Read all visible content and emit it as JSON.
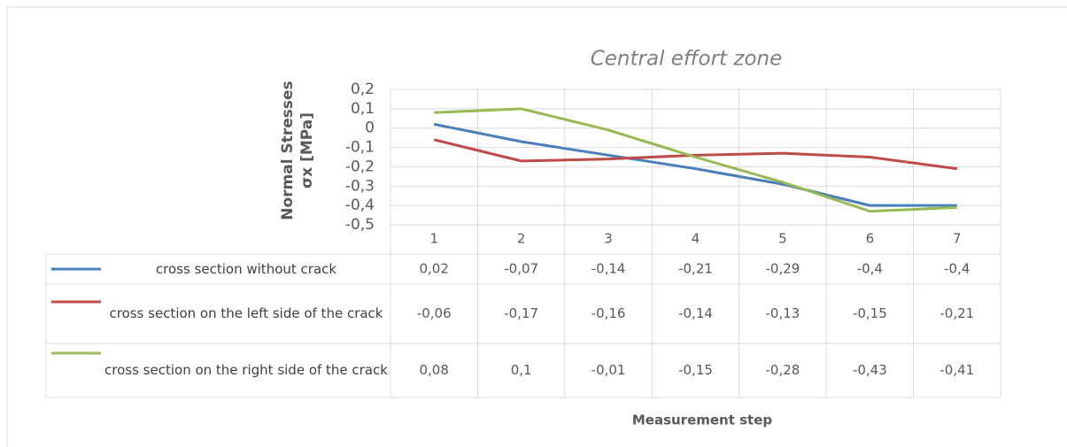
{
  "chart_data": {
    "type": "line",
    "title": "Central effort zone",
    "y_label": [
      "Normal Stresses",
      "σx [MPa]"
    ],
    "x_label": "Measurement step",
    "categories": [
      "1",
      "2",
      "3",
      "4",
      "5",
      "6",
      "7"
    ],
    "series": [
      {
        "name": "cross section without crack",
        "color": "#4a7ebb",
        "values": [
          0.02,
          -0.07,
          -0.14,
          -0.21,
          -0.29,
          -0.4,
          -0.4
        ],
        "value_labels": [
          "0,02",
          "-0,07",
          "-0,14",
          "-0,21",
          "-0,29",
          "-0,4",
          "-0,4"
        ]
      },
      {
        "name": "cross section on the left side of the crack",
        "color": "#be4b48",
        "values": [
          -0.06,
          -0.17,
          -0.16,
          -0.14,
          -0.13,
          -0.15,
          -0.21
        ],
        "value_labels": [
          "-0,06",
          "-0,17",
          "-0,16",
          "-0,14",
          "-0,13",
          "-0,15",
          "-0,21"
        ]
      },
      {
        "name": "cross section on the right side of the crack",
        "color": "#98b954",
        "values": [
          0.08,
          0.1,
          -0.01,
          -0.15,
          -0.28,
          -0.43,
          -0.41
        ],
        "value_labels": [
          "0,08",
          "0,1",
          "-0,01",
          "-0,15",
          "-0,28",
          "-0,43",
          "-0,41"
        ]
      }
    ],
    "ylim": [
      -0.5,
      0.2
    ],
    "yticks": [
      {
        "value": -0.5,
        "label": "-0,5"
      },
      {
        "value": -0.4,
        "label": "-0,4"
      },
      {
        "value": -0.3,
        "label": "-0,3"
      },
      {
        "value": -0.2,
        "label": "-0,2"
      },
      {
        "value": -0.1,
        "label": "-0,1"
      },
      0,
      {
        "value": 0.1,
        "label": "0,1"
      },
      {
        "value": 0.2,
        "label": "0,2"
      }
    ],
    "grid": true
  }
}
